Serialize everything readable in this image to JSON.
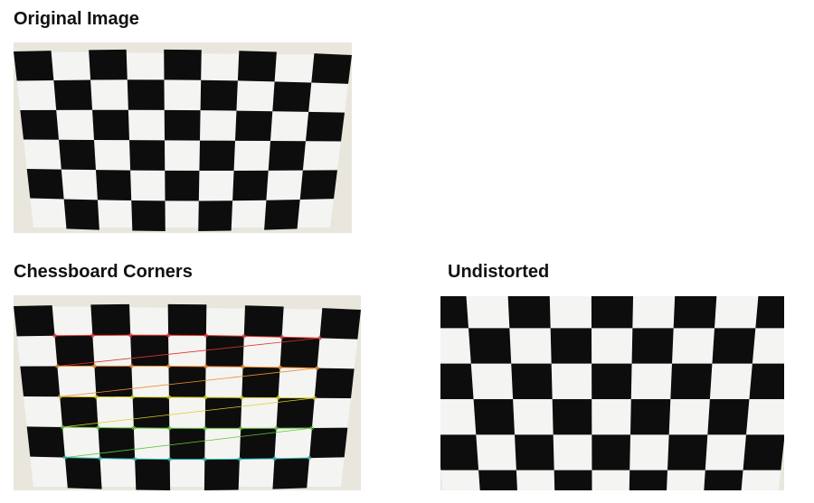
{
  "panels": {
    "original": {
      "title": "Original Image"
    },
    "corners": {
      "title": "Chessboard Corners"
    },
    "undistorted": {
      "title": "Undistorted"
    }
  },
  "colors": {
    "board_dark": "#0d0d0d",
    "board_light": "#f4f4f2",
    "wall": "#e9e6dd",
    "corner_rows": [
      "#e0312b",
      "#f08a2c",
      "#d9cf2a",
      "#5dc53a",
      "#2ab6b0",
      "#3060e0"
    ]
  }
}
